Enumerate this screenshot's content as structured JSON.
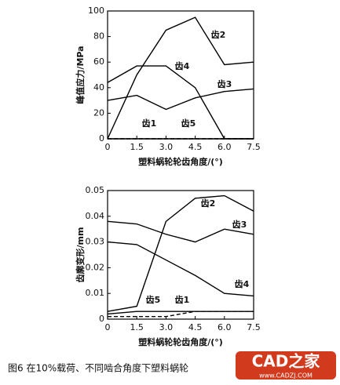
{
  "chart_data": [
    {
      "type": "line",
      "y_label": "峰值应力/MPa",
      "x_label": "塑料蜗轮轮齿角度/(°)",
      "x": [
        0,
        1.5,
        3,
        4.5,
        6,
        7.5
      ],
      "xlim": [
        0,
        7.5
      ],
      "xticks": [
        0,
        1.5,
        {
          "value": 3,
          "label": "3.0"
        },
        4.5,
        {
          "value": 6,
          "label": "6.0"
        },
        7.5
      ],
      "ylim": [
        0,
        100
      ],
      "yticks": [
        0,
        20,
        40,
        60,
        80,
        100
      ],
      "series": [
        {
          "name": "齿2",
          "color": "#000000",
          "values": [
            0,
            50,
            85,
            95,
            58,
            60
          ]
        },
        {
          "name": "齿4",
          "color": "#000000",
          "values": [
            44,
            57,
            57,
            40,
            0,
            0
          ]
        },
        {
          "name": "齿3",
          "color": "#000000",
          "values": [
            30,
            34,
            23,
            32,
            37,
            39
          ]
        },
        {
          "name": "齿1",
          "color": "#000000",
          "dashed": true,
          "values": [
            0,
            0,
            0,
            0,
            0,
            0
          ]
        },
        {
          "name": "齿5",
          "color": "#000000",
          "values": [
            0,
            0,
            0,
            0,
            0,
            0
          ]
        }
      ]
    },
    {
      "type": "line",
      "y_label": "齿廓变形/mm",
      "x_label": "塑料蜗轮轮齿角度/(°)",
      "x": [
        0,
        1.5,
        3,
        4.5,
        6,
        7.5
      ],
      "xlim": [
        0,
        7.5
      ],
      "xticks": [
        0,
        1.5,
        {
          "value": 3,
          "label": "3.0"
        },
        4.5,
        {
          "value": 6,
          "label": "6.0"
        },
        7.5
      ],
      "ylim": [
        0,
        0.05
      ],
      "yticks": [
        0,
        0.01,
        0.02,
        0.03,
        0.04,
        0.05
      ],
      "series": [
        {
          "name": "齿2",
          "color": "#000000",
          "values": [
            0.003,
            0.005,
            0.038,
            0.047,
            0.048,
            0.042
          ]
        },
        {
          "name": "齿3",
          "color": "#000000",
          "values": [
            0.038,
            0.037,
            0.033,
            0.03,
            0.035,
            0.033
          ]
        },
        {
          "name": "齿4",
          "color": "#000000",
          "values": [
            0.03,
            0.029,
            0.023,
            0.017,
            0.01,
            0.009
          ]
        },
        {
          "name": "齿5",
          "color": "#000000",
          "values": [
            0.002,
            0.003,
            0.003,
            0.003,
            0.003,
            0.003
          ]
        },
        {
          "name": "齿1",
          "color": "#000000",
          "dashed": true,
          "values": [
            0.001,
            0.001,
            0.001,
            0.003,
            0.003,
            0.003
          ]
        }
      ]
    }
  ],
  "caption": "图6  在10%载荷、不同啮合角度下塑料蜗轮",
  "watermark": {
    "text": "CAD之家",
    "url": "www.CADZJ.COM"
  }
}
